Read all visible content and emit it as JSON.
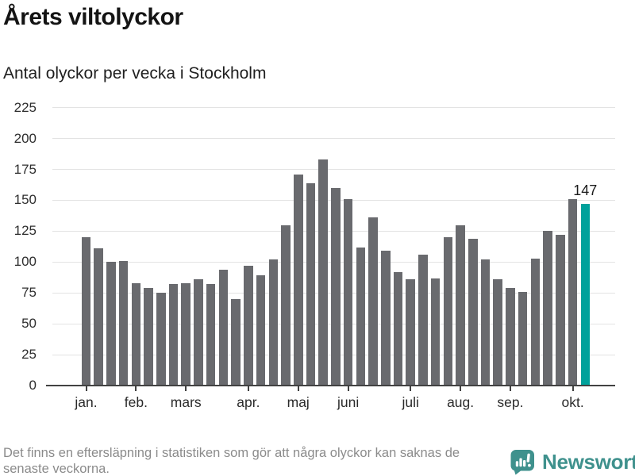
{
  "header": {
    "title": "Årets viltolyckor",
    "subtitle": "Antal olyckor per vecka i Stockholm"
  },
  "chart_data": {
    "type": "bar",
    "title": "Årets viltolyckor",
    "subtitle": "Antal olyckor per vecka i Stockholm",
    "ylabel": "",
    "xlabel": "",
    "ylim": [
      0,
      225
    ],
    "grid": "horizontal",
    "y_ticks": [
      0,
      25,
      50,
      75,
      100,
      125,
      150,
      175,
      200,
      225
    ],
    "values": [
      120,
      111,
      100,
      101,
      83,
      79,
      75,
      82,
      83,
      86,
      82,
      94,
      70,
      97,
      89,
      102,
      130,
      171,
      164,
      183,
      160,
      151,
      112,
      136,
      109,
      92,
      86,
      106,
      87,
      120,
      130,
      119,
      102,
      86,
      79,
      76,
      103,
      125,
      122,
      151,
      147
    ],
    "highlight_index": 40,
    "annotation": {
      "label": "147",
      "bar_index": 40
    },
    "x_month_ticks": [
      {
        "label": "jan.",
        "week": 1
      },
      {
        "label": "feb.",
        "week": 5
      },
      {
        "label": "mars",
        "week": 9
      },
      {
        "label": "apr.",
        "week": 14
      },
      {
        "label": "maj",
        "week": 18
      },
      {
        "label": "juni",
        "week": 22
      },
      {
        "label": "juli",
        "week": 27
      },
      {
        "label": "aug.",
        "week": 31
      },
      {
        "label": "sep.",
        "week": 35
      },
      {
        "label": "okt.",
        "week": 40
      }
    ],
    "colors": {
      "bar": "#696a6e",
      "highlight": "#00a19b",
      "gridline": "#e3e3e3",
      "axis": "#424242",
      "label": "#2e2e2e"
    }
  },
  "footer": {
    "note_line1": "Det finns en eftersläpning i statistiken som gör att några olyckor kan saknas de",
    "note_line2": "senaste veckorna.",
    "brand": {
      "name": "Newsworthy",
      "color": "#3f918d"
    }
  }
}
